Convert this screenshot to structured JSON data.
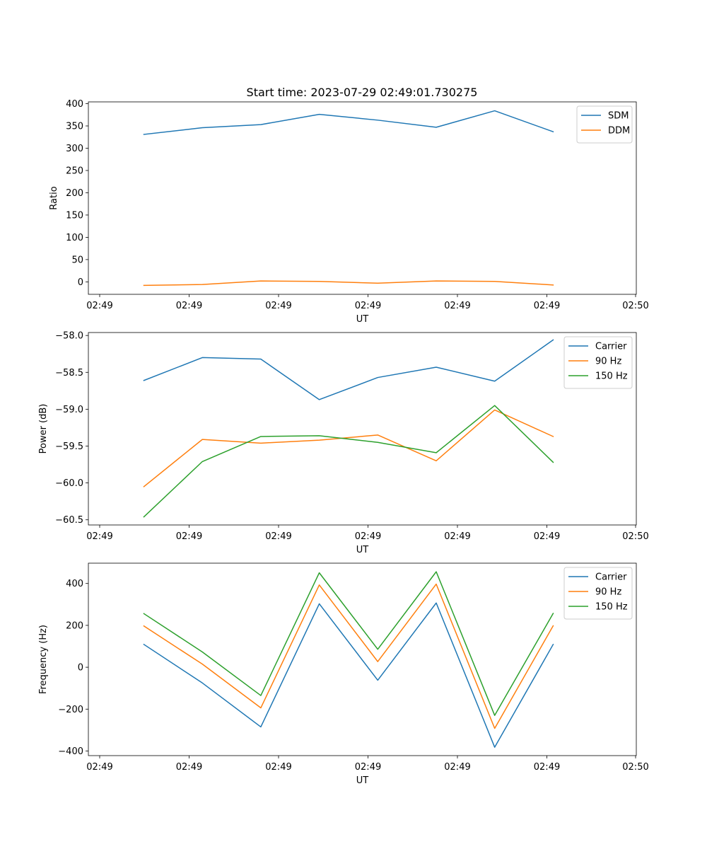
{
  "figure_title": "Start time: 2023-07-29 02:49:01.730275",
  "chart_data": [
    {
      "type": "line",
      "title": "Start time: 2023-07-29 02:49:01.730275",
      "xlabel": "UT",
      "ylabel": "Ratio",
      "x_tick_labels": [
        "02:49",
        "02:49",
        "02:49",
        "02:49",
        "02:49",
        "02:49",
        "02:49"
      ],
      "x_last_tick_label": "02:50",
      "ylim": [
        -28,
        404
      ],
      "y_ticks": [
        0,
        50,
        100,
        150,
        200,
        250,
        300,
        350,
        400
      ],
      "legend_position": "top-right",
      "series": [
        {
          "name": "SDM",
          "color": "#1f77b4",
          "values": [
            331,
            346,
            353,
            376,
            363,
            347,
            384,
            337
          ]
        },
        {
          "name": "DDM",
          "color": "#ff7f0e",
          "values": [
            -8,
            -6,
            2,
            1,
            -3,
            2,
            1,
            -7
          ]
        }
      ]
    },
    {
      "type": "line",
      "title": "",
      "xlabel": "UT",
      "ylabel": "Power (dB)",
      "x_tick_labels": [
        "02:49",
        "02:49",
        "02:49",
        "02:49",
        "02:49",
        "02:49",
        "02:49"
      ],
      "x_last_tick_label": "02:50",
      "ylim": [
        -60.57,
        -57.96
      ],
      "y_ticks": [
        -60.5,
        -60.0,
        -59.5,
        -59.0,
        -58.5,
        -58.0
      ],
      "y_tick_labels": [
        "−60.5",
        "−60.0",
        "−59.5",
        "−59.0",
        "−58.5",
        "−58.0"
      ],
      "legend_position": "top-right",
      "series": [
        {
          "name": "Carrier",
          "color": "#1f77b4",
          "values": [
            -58.61,
            -58.3,
            -58.32,
            -58.87,
            -58.57,
            -58.43,
            -58.62,
            -58.06
          ]
        },
        {
          "name": "90 Hz",
          "color": "#ff7f0e",
          "values": [
            -60.05,
            -59.41,
            -59.46,
            -59.42,
            -59.35,
            -59.7,
            -59.01,
            -59.37
          ]
        },
        {
          "name": "150 Hz",
          "color": "#2ca02c",
          "values": [
            -60.46,
            -59.71,
            -59.37,
            -59.36,
            -59.45,
            -59.59,
            -58.95,
            -59.72
          ]
        }
      ]
    },
    {
      "type": "line",
      "title": "",
      "xlabel": "UT",
      "ylabel": "Frequency (Hz)",
      "x_tick_labels": [
        "02:49",
        "02:49",
        "02:49",
        "02:49",
        "02:49",
        "02:49",
        "02:49"
      ],
      "x_last_tick_label": "02:50",
      "ylim": [
        -422,
        497
      ],
      "y_ticks": [
        -400,
        -200,
        0,
        200,
        400
      ],
      "y_tick_labels": [
        "−400",
        "−200",
        "0",
        "200",
        "400"
      ],
      "legend_position": "top-right",
      "series": [
        {
          "name": "Carrier",
          "color": "#1f77b4",
          "values": [
            109,
            -75,
            -285,
            303,
            -62,
            307,
            -382,
            109
          ]
        },
        {
          "name": "90 Hz",
          "color": "#ff7f0e",
          "values": [
            197,
            15,
            -194,
            393,
            27,
            397,
            -292,
            198
          ]
        },
        {
          "name": "150 Hz",
          "color": "#2ca02c",
          "values": [
            256,
            73,
            -135,
            451,
            86,
            456,
            -230,
            257
          ]
        }
      ]
    }
  ]
}
